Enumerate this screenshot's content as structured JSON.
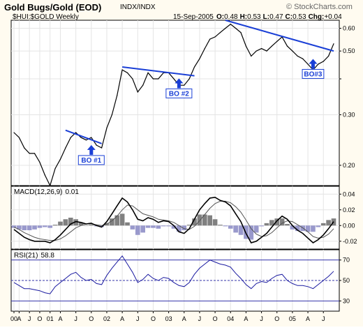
{
  "header": {
    "title": "Gold Bugs/Gold (EOD)",
    "exchange": "INDX/INDX",
    "watermark": "© StockCharts.com",
    "symbol": "$HUI:$GOLD Weekly",
    "date": "15-Sep-2005",
    "o_label": "O:",
    "o_value": "0.48",
    "h_label": "H:",
    "h_value": "0.53",
    "l_label": "L:",
    "l_value": "0.47",
    "c_label": "C:",
    "c_value": "0.53",
    "chg_label": "Chg:",
    "chg_value": "+0.04"
  },
  "colors": {
    "price": "#000000",
    "trendline": "#1a3fd6",
    "arrow": "#1a3fd6",
    "label_bg": "#ffffff",
    "label_text": "#1a3fd6",
    "macd": "#000000",
    "signal": "#555555",
    "histogram_pos": "#808080",
    "histogram_neg": "#9999cc",
    "rsi": "#1a1aa0",
    "panel_bg": "#ffffff",
    "page_bg": "#fffbf0"
  },
  "chart_data": [
    {
      "type": "line",
      "panel": "price",
      "scale": "log",
      "ylim": [
        0.17,
        0.64
      ],
      "yticks": [
        0.2,
        0.3,
        0.4,
        0.5,
        0.6
      ],
      "ytick_labels": [
        "0.20",
        "0.30",
        "",
        "0.50",
        "0.60"
      ],
      "x_start": "2000-07",
      "x_end": "2005-09",
      "series": [
        {
          "x": [
            "2000-07",
            "2000-08",
            "2000-09",
            "2000-10",
            "2000-11",
            "2000-12",
            "2001-01",
            "2001-02",
            "2001-03",
            "2001-04",
            "2001-05",
            "2001-06",
            "2001-07",
            "2001-08",
            "2001-09",
            "2001-10",
            "2001-11",
            "2001-12",
            "2002-01",
            "2002-02",
            "2002-03",
            "2002-04",
            "2002-05",
            "2002-06",
            "2002-07",
            "2002-08",
            "2002-09",
            "2002-10",
            "2002-11",
            "2002-12",
            "2003-01",
            "2003-02",
            "2003-03",
            "2003-04",
            "2003-05",
            "2003-06",
            "2003-07",
            "2003-08",
            "2003-09",
            "2003-10",
            "2003-11",
            "2003-12",
            "2004-01",
            "2004-02",
            "2004-03",
            "2004-04",
            "2004-05",
            "2004-06",
            "2004-07",
            "2004-08",
            "2004-09",
            "2004-10",
            "2004-11",
            "2004-12",
            "2005-01",
            "2005-02",
            "2005-03",
            "2005-04",
            "2005-05",
            "2005-06",
            "2005-07",
            "2005-08",
            "2005-09"
          ],
          "values": [
            0.26,
            0.25,
            0.23,
            0.22,
            0.22,
            0.205,
            0.185,
            0.17,
            0.195,
            0.21,
            0.23,
            0.25,
            0.26,
            0.25,
            0.245,
            0.25,
            0.235,
            0.23,
            0.27,
            0.3,
            0.35,
            0.43,
            0.42,
            0.4,
            0.36,
            0.38,
            0.42,
            0.4,
            0.4,
            0.42,
            0.42,
            0.4,
            0.38,
            0.38,
            0.4,
            0.44,
            0.47,
            0.51,
            0.55,
            0.56,
            0.58,
            0.6,
            0.62,
            0.6,
            0.58,
            0.52,
            0.48,
            0.5,
            0.51,
            0.5,
            0.52,
            0.54,
            0.56,
            0.52,
            0.5,
            0.48,
            0.47,
            0.45,
            0.43,
            0.45,
            0.46,
            0.48,
            0.53
          ]
        }
      ],
      "trendlines": [
        {
          "x": [
            "2001-05",
            "2001-12"
          ],
          "y": [
            0.265,
            0.238
          ]
        },
        {
          "x": [
            "2002-04",
            "2003-06"
          ],
          "y": [
            0.44,
            0.41
          ]
        },
        {
          "x": [
            "2003-12",
            "2005-09"
          ],
          "y": [
            0.64,
            0.5
          ]
        }
      ],
      "annotations": [
        {
          "text": "BO #1",
          "x": "2001-10",
          "y": 0.208
        },
        {
          "text": "BO #2",
          "x": "2003-03",
          "y": 0.355
        },
        {
          "text": "BO#3",
          "x": "2005-05",
          "y": 0.415
        }
      ]
    },
    {
      "type": "line",
      "panel": "macd",
      "title": "MACD(12,26,9)",
      "title_value": "0.01",
      "ylim": [
        -0.03,
        0.05
      ],
      "yticks": [
        0.04,
        0.02,
        0.0,
        -0.02
      ],
      "ytick_labels": [
        "0.04",
        "0.02",
        "0.00",
        "-0.02"
      ],
      "x_start": "2000-07",
      "x_end": "2005-09",
      "series": [
        {
          "name": "macd",
          "values": [
            -0.005,
            -0.01,
            -0.015,
            -0.018,
            -0.02,
            -0.02,
            -0.02,
            -0.022,
            -0.018,
            -0.012,
            -0.005,
            0.002,
            0.005,
            0.004,
            0.002,
            0.003,
            0.0,
            -0.002,
            0.005,
            0.015,
            0.025,
            0.035,
            0.03,
            0.02,
            0.008,
            0.006,
            0.01,
            0.008,
            0.004,
            0.006,
            0.005,
            0.0,
            -0.008,
            -0.01,
            -0.004,
            0.008,
            0.02,
            0.028,
            0.035,
            0.036,
            0.032,
            0.03,
            0.025,
            0.015,
            0.005,
            -0.01,
            -0.022,
            -0.02,
            -0.015,
            -0.01,
            -0.002,
            0.006,
            0.012,
            0.008,
            0.0,
            -0.006,
            -0.01,
            -0.016,
            -0.022,
            -0.018,
            -0.012,
            -0.004,
            0.005
          ]
        },
        {
          "name": "signal",
          "values": [
            -0.002,
            -0.005,
            -0.009,
            -0.012,
            -0.015,
            -0.017,
            -0.018,
            -0.019,
            -0.019,
            -0.017,
            -0.013,
            -0.008,
            -0.003,
            0.0,
            0.002,
            0.002,
            0.001,
            0.0,
            0.002,
            0.006,
            0.012,
            0.02,
            0.026,
            0.025,
            0.02,
            0.015,
            0.013,
            0.011,
            0.008,
            0.007,
            0.006,
            0.004,
            0.0,
            -0.004,
            -0.005,
            -0.001,
            0.006,
            0.014,
            0.022,
            0.028,
            0.031,
            0.031,
            0.029,
            0.024,
            0.017,
            0.007,
            -0.004,
            -0.011,
            -0.014,
            -0.013,
            -0.009,
            -0.003,
            0.003,
            0.006,
            0.005,
            0.001,
            -0.003,
            -0.008,
            -0.014,
            -0.016,
            -0.015,
            -0.011,
            -0.004
          ]
        }
      ]
    },
    {
      "type": "line",
      "panel": "rsi",
      "title": "RSI(21)",
      "title_value": "58.8",
      "ylim": [
        20,
        80
      ],
      "yticks": [
        70,
        50,
        30
      ],
      "ytick_labels": [
        "70",
        "50",
        "30"
      ],
      "x_start": "2000-07",
      "x_end": "2005-09",
      "series": [
        {
          "name": "rsi",
          "values": [
            48,
            45,
            42,
            42,
            41,
            40,
            38,
            37,
            44,
            48,
            52,
            56,
            58,
            53,
            50,
            51,
            47,
            46,
            55,
            62,
            68,
            74,
            66,
            58,
            48,
            51,
            56,
            52,
            50,
            53,
            52,
            48,
            45,
            44,
            48,
            56,
            62,
            66,
            70,
            68,
            66,
            65,
            63,
            57,
            52,
            46,
            42,
            47,
            49,
            48,
            52,
            55,
            56,
            50,
            47,
            45,
            45,
            44,
            42,
            46,
            50,
            54,
            59
          ]
        }
      ]
    }
  ],
  "xaxis": {
    "ticks": [
      {
        "label": "00",
        "x": "2000-07"
      },
      {
        "label": "A",
        "x": "2000-08"
      },
      {
        "label": "J",
        "x": "2000-10"
      },
      {
        "label": "O",
        "x": "2000-12"
      },
      {
        "label": "01",
        "x": "2001-02"
      },
      {
        "label": "A",
        "x": "2001-04"
      },
      {
        "label": "J",
        "x": "2001-07"
      },
      {
        "label": "O",
        "x": "2001-10"
      },
      {
        "label": "02",
        "x": "2002-01"
      },
      {
        "label": "A",
        "x": "2002-04"
      },
      {
        "label": "J",
        "x": "2002-07"
      },
      {
        "label": "O",
        "x": "2002-10"
      },
      {
        "label": "03",
        "x": "2003-01"
      },
      {
        "label": "A",
        "x": "2003-04"
      },
      {
        "label": "J",
        "x": "2003-07"
      },
      {
        "label": "O",
        "x": "2003-10"
      },
      {
        "label": "04",
        "x": "2004-01"
      },
      {
        "label": "A",
        "x": "2004-04"
      },
      {
        "label": "J",
        "x": "2004-07"
      },
      {
        "label": "O",
        "x": "2004-10"
      },
      {
        "label": "05",
        "x": "2005-01"
      },
      {
        "label": "A",
        "x": "2005-04"
      },
      {
        "label": "J",
        "x": "2005-07"
      }
    ]
  }
}
